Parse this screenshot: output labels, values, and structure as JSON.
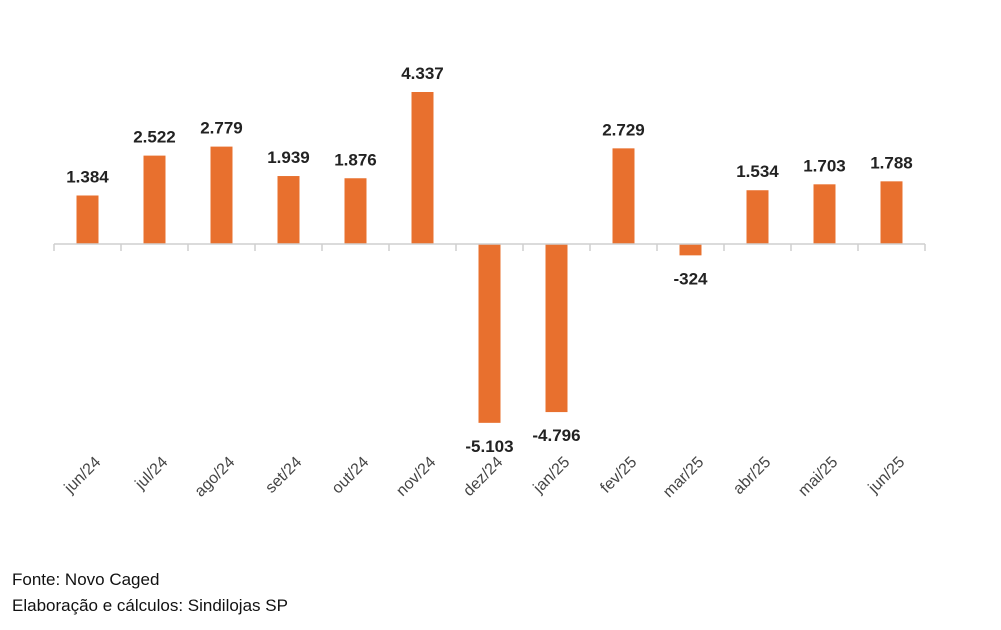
{
  "chart_data": {
    "type": "bar",
    "categories": [
      "jun/24",
      "jul/24",
      "ago/24",
      "set/24",
      "out/24",
      "nov/24",
      "dez/24",
      "jan/25",
      "fev/25",
      "mar/25",
      "abr/25",
      "mai/25",
      "jun/25"
    ],
    "values": [
      1384,
      2522,
      2779,
      1939,
      1876,
      4337,
      -5103,
      -4796,
      2729,
      -324,
      1534,
      1703,
      1788
    ],
    "value_labels": [
      "1.384",
      "2.522",
      "2.779",
      "1.939",
      "1.876",
      "4.337",
      "-5.103",
      "-4.796",
      "2.729",
      "-324",
      "1.534",
      "1.703",
      "1.788"
    ],
    "title": "",
    "xlabel": "",
    "ylabel": "",
    "grid": false,
    "legend": "none",
    "bar_color": "#E8702E"
  },
  "footer": {
    "source": "Fonte: Novo Caged",
    "credits": "Elaboração e cálculos: Sindilojas SP"
  }
}
